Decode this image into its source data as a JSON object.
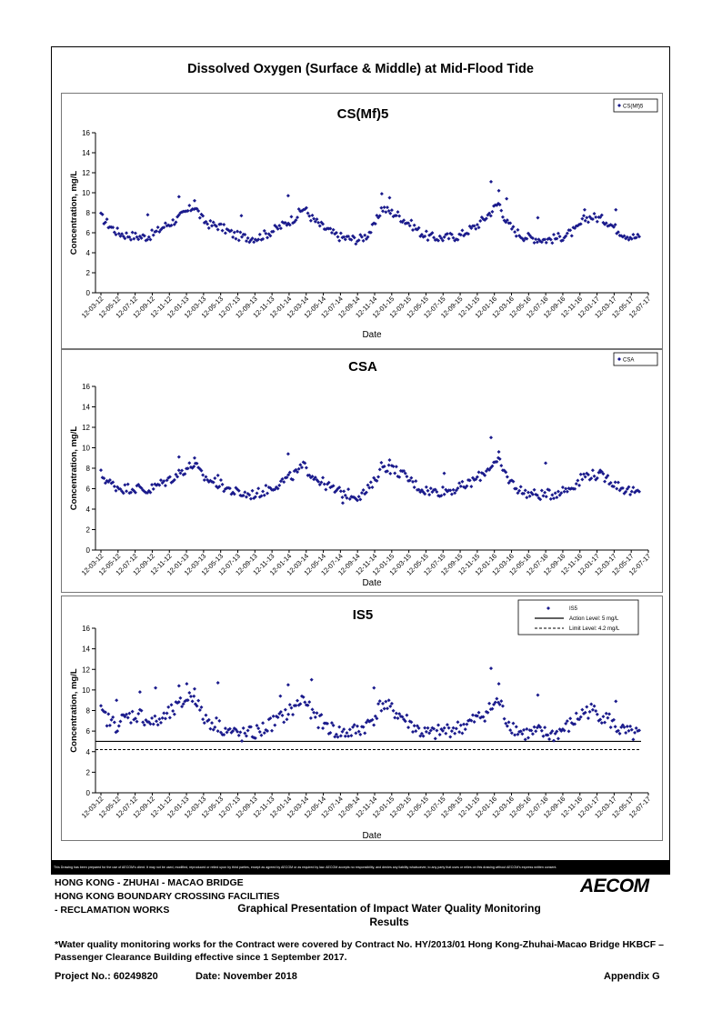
{
  "main_title": "Dissolved Oxygen (Surface & Middle) at Mid-Flood Tide",
  "disclaimer": "This Drawing has been prepared for the use of AECOM's client. It may not be used, modified, reproduced or relied upon by third parties, except as agreed by AECOM or as required by law. AECOM accepts no responsibility, and denies any liability whatsoever, to any party that uses or relies on this drawing without AECOM's express written consent.",
  "project": {
    "line1": "HONG KONG - ZHUHAI - MACAO BRIDGE",
    "line2": "HONG KONG BOUNDARY CROSSING FACILITIES",
    "line3": "- RECLAMATION WORKS"
  },
  "logo": "AECOM",
  "drawing_title": "Graphical Presentation of Impact Water Quality Monitoring Results",
  "footnote": "*Water quality monitoring works for the Contract were covered by Contract No. HY/2013/01 Hong Kong-Zhuhai-Macao Bridge HKBCF – Passenger Clearance Building effective since 1 September 2017.",
  "project_no": "Project No.: 60249820",
  "date": "Date: November 2018",
  "appendix": "Appendix G",
  "colors": {
    "marker": "#1a1a8c",
    "axis": "#000000"
  },
  "chart_data": [
    {
      "type": "scatter",
      "title": "CS(Mf)5",
      "xlabel": "Date",
      "ylabel": "Concentration, mg/L",
      "ylim": [
        0,
        16
      ],
      "yticks": [
        "0",
        "2",
        "4",
        "6",
        "8",
        "10",
        "12",
        "14",
        "16"
      ],
      "xticks": [
        "12-03-12",
        "12-05-12",
        "12-07-12",
        "12-09-12",
        "12-11-12",
        "12-01-13",
        "12-03-13",
        "12-05-13",
        "12-07-13",
        "12-09-13",
        "12-11-13",
        "12-01-14",
        "12-03-14",
        "12-05-14",
        "12-07-14",
        "12-09-14",
        "12-11-14",
        "12-01-15",
        "12-03-15",
        "12-05-15",
        "12-07-15",
        "12-09-15",
        "12-11-15",
        "12-01-16",
        "12-03-16",
        "12-05-16",
        "12-07-16",
        "12-09-16",
        "12-11-16",
        "12-01-17",
        "12-03-17",
        "12-05-17",
        "12-07-17"
      ],
      "legend": [
        "CS(Mf)5"
      ],
      "legend_position": "top-right",
      "grid": false,
      "series": [
        {
          "name": "CS(Mf)5",
          "profile": [
            7.6,
            6.8,
            6.1,
            5.8,
            5.7,
            5.6,
            5.6,
            6.0,
            6.6,
            7.0,
            7.5,
            8.1,
            8.7,
            7.3,
            6.8,
            6.7,
            6.3,
            5.8,
            5.6,
            5.5,
            5.5,
            5.8,
            6.2,
            6.6,
            7.1,
            7.6,
            8.5,
            7.5,
            6.8,
            6.3,
            5.8,
            5.5,
            5.4,
            5.3,
            5.7,
            6.6,
            8.5,
            8.1,
            7.8,
            7.2,
            6.7,
            6.0,
            5.6,
            5.5,
            5.5,
            5.6,
            5.7,
            6.2,
            6.6,
            7.3,
            8.1,
            9.0,
            7.0,
            6.2,
            5.7,
            5.5,
            5.4,
            5.3,
            5.4,
            5.6,
            5.9,
            6.3,
            7.4,
            7.6,
            7.4,
            7.1,
            6.4,
            5.9,
            5.6,
            5.5
          ],
          "noise": 0.45,
          "peaks": [
            [
              10,
              9.6
            ],
            [
              12,
              9.2
            ],
            [
              24,
              9.7
            ],
            [
              36,
              9.9
            ],
            [
              37,
              9.5
            ],
            [
              50,
              11.1
            ],
            [
              51,
              10.2
            ],
            [
              52,
              9.4
            ],
            [
              62,
              8.3
            ],
            [
              66,
              8.3
            ],
            [
              6,
              7.8
            ],
            [
              18,
              7.7
            ],
            [
              56,
              7.5
            ]
          ]
        }
      ]
    },
    {
      "type": "scatter",
      "title": "CSA",
      "xlabel": "Date",
      "ylabel": "Concentration, mg/L",
      "ylim": [
        0,
        16
      ],
      "yticks": [
        "0",
        "2",
        "4",
        "6",
        "8",
        "10",
        "12",
        "14",
        "16"
      ],
      "xticks": [
        "12-03-12",
        "12-05-12",
        "12-07-12",
        "12-09-12",
        "12-11-12",
        "12-01-13",
        "12-03-13",
        "12-05-13",
        "12-07-13",
        "12-09-13",
        "12-11-13",
        "12-01-14",
        "12-03-14",
        "12-05-14",
        "12-07-14",
        "12-09-14",
        "12-11-14",
        "12-01-15",
        "12-03-15",
        "12-05-15",
        "12-07-15",
        "12-09-15",
        "12-11-15",
        "12-01-16",
        "12-03-16",
        "12-05-16",
        "12-07-16",
        "12-09-16",
        "12-11-16",
        "12-01-17",
        "12-03-17",
        "12-05-17",
        "12-07-17"
      ],
      "legend": [
        "CSA"
      ],
      "legend_position": "top-right",
      "grid": false,
      "series": [
        {
          "name": "CSA",
          "profile": [
            7.4,
            6.6,
            6.2,
            6.0,
            6.1,
            6.0,
            5.8,
            6.2,
            6.6,
            7.0,
            7.5,
            8.0,
            8.4,
            7.2,
            6.8,
            6.5,
            6.1,
            5.7,
            5.5,
            5.4,
            5.5,
            5.8,
            6.2,
            6.6,
            7.0,
            7.5,
            8.2,
            7.4,
            6.8,
            6.3,
            5.8,
            5.6,
            5.4,
            5.3,
            5.7,
            6.6,
            8.3,
            8.0,
            7.7,
            7.2,
            6.6,
            6.0,
            5.8,
            5.7,
            5.8,
            5.9,
            6.1,
            6.4,
            6.9,
            7.5,
            8.3,
            8.6,
            7.2,
            6.3,
            5.7,
            5.5,
            5.4,
            5.4,
            5.5,
            5.8,
            6.0,
            6.6,
            7.3,
            7.4,
            7.2,
            7.0,
            6.4,
            6.0,
            5.7,
            5.5
          ],
          "noise": 0.5,
          "peaks": [
            [
              10,
              9.1
            ],
            [
              12,
              9.0
            ],
            [
              24,
              9.4
            ],
            [
              37,
              8.8
            ],
            [
              50,
              11.0
            ],
            [
              51,
              9.6
            ],
            [
              15,
              7.3
            ],
            [
              44,
              7.5
            ],
            [
              57,
              8.5
            ],
            [
              64,
              7.8
            ],
            [
              31,
              4.6
            ]
          ]
        }
      ]
    },
    {
      "type": "scatter",
      "title": "IS5",
      "xlabel": "Date",
      "ylabel": "Concentration, mg/L",
      "ylim": [
        0,
        16
      ],
      "yticks": [
        "0",
        "2",
        "4",
        "6",
        "8",
        "10",
        "12",
        "14",
        "16"
      ],
      "xticks": [
        "12-03-12",
        "12-05-12",
        "12-07-12",
        "12-09-12",
        "12-11-12",
        "12-01-13",
        "12-03-13",
        "12-05-13",
        "12-07-13",
        "12-09-13",
        "12-11-13",
        "12-01-14",
        "12-03-14",
        "12-05-14",
        "12-07-14",
        "12-09-14",
        "12-11-14",
        "12-01-15",
        "12-03-15",
        "12-05-15",
        "12-07-15",
        "12-09-15",
        "12-11-15",
        "12-01-16",
        "12-03-16",
        "12-05-16",
        "12-07-16",
        "12-09-16",
        "12-11-16",
        "12-01-17",
        "12-03-17",
        "12-05-17",
        "12-07-17"
      ],
      "legend": [
        "IS5",
        "Action Level: 5 mg/L",
        "Limit Level: 4.2 mg/L"
      ],
      "legend_position": "top-right",
      "grid": false,
      "action_level": 5,
      "limit_level": 4.2,
      "series": [
        {
          "name": "IS5",
          "profile": [
            7.8,
            7.0,
            6.6,
            7.2,
            7.5,
            7.6,
            7.0,
            6.8,
            7.2,
            7.8,
            8.4,
            9.2,
            9.5,
            7.4,
            6.9,
            6.6,
            6.1,
            5.8,
            5.6,
            5.7,
            5.9,
            6.3,
            6.8,
            7.2,
            7.8,
            8.4,
            9.3,
            7.6,
            7.0,
            6.5,
            6.0,
            5.8,
            5.9,
            6.1,
            6.5,
            7.3,
            8.7,
            8.2,
            7.7,
            7.1,
            6.5,
            5.9,
            5.7,
            5.8,
            6.0,
            6.2,
            6.3,
            6.7,
            7.1,
            7.6,
            8.2,
            9.0,
            7.0,
            6.3,
            5.8,
            5.7,
            5.9,
            5.7,
            5.6,
            6.0,
            6.5,
            7.2,
            7.9,
            8.0,
            7.6,
            7.2,
            6.4,
            5.9,
            5.7,
            5.6
          ],
          "noise": 0.75,
          "peaks": [
            [
              7,
              10.2
            ],
            [
              10,
              10.4
            ],
            [
              11,
              10.6
            ],
            [
              12,
              10.1
            ],
            [
              15,
              10.7
            ],
            [
              23,
              9.4
            ],
            [
              24,
              10.5
            ],
            [
              27,
              11.0
            ],
            [
              35,
              10.2
            ],
            [
              50,
              12.1
            ],
            [
              51,
              10.6
            ],
            [
              56,
              9.5
            ],
            [
              66,
              8.9
            ],
            [
              2,
              9.0
            ],
            [
              5,
              9.8
            ]
          ]
        }
      ]
    }
  ]
}
